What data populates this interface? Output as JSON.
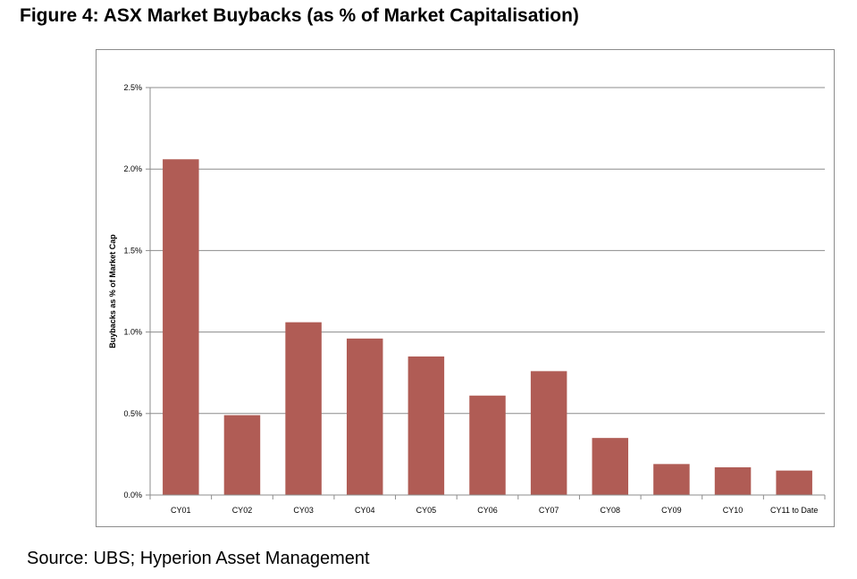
{
  "figure_title": "Figure 4: ASX Market Buybacks (as % of Market Capitalisation)",
  "source": "Source: UBS; Hyperion Asset Management",
  "colors": {
    "bar": "#b05c55",
    "grid": "#8c8c8c",
    "axis": "#8c8c8c",
    "text": "#000000"
  },
  "chart_data": {
    "type": "bar",
    "title": "",
    "xlabel": "",
    "ylabel": "Buybacks as % of Market Cap",
    "categories": [
      "CY01",
      "CY02",
      "CY03",
      "CY04",
      "CY05",
      "CY06",
      "CY07",
      "CY08",
      "CY09",
      "CY10",
      "CY11 to Date"
    ],
    "series": [
      {
        "values": [
          2.06,
          0.49,
          1.06,
          0.96,
          0.85,
          0.61,
          0.76,
          0.35,
          0.19,
          0.17,
          0.15
        ]
      }
    ],
    "ylim": [
      0,
      2.5
    ],
    "yticks": [
      0.0,
      0.5,
      1.0,
      1.5,
      2.0,
      2.5
    ],
    "ytick_labels": [
      "0.0%",
      "0.5%",
      "1.0%",
      "1.5%",
      "2.0%",
      "2.5%"
    ],
    "grid": true,
    "legend": "none"
  }
}
